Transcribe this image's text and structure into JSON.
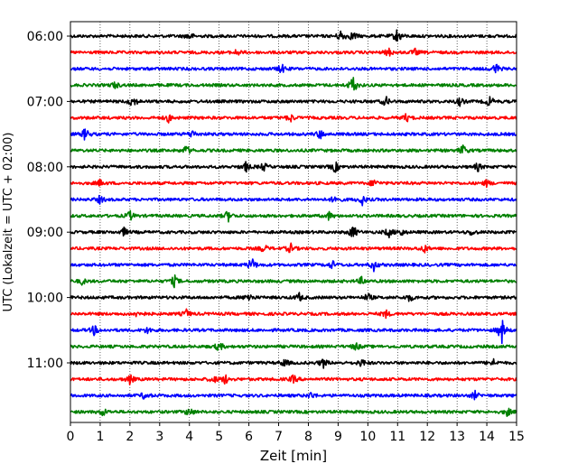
{
  "chart_data": {
    "type": "line",
    "title": "",
    "xlabel": "Zeit  [min]",
    "ylabel": "UTC (Lokalzeit = UTC + 02:00)",
    "xlim": [
      0,
      15
    ],
    "x_ticks": [
      0,
      1,
      2,
      3,
      4,
      5,
      6,
      7,
      8,
      9,
      10,
      11,
      12,
      13,
      14,
      15
    ],
    "grid": "vertical dotted",
    "y_tick_labels": [
      "06:00",
      "07:00",
      "08:00",
      "09:00",
      "10:00",
      "11:00"
    ],
    "colors": [
      "#000000",
      "#ff0000",
      "#0000ff",
      "#008000"
    ],
    "traces_start": "06:00",
    "trace_interval_min": 15,
    "traces": [
      {
        "start": "06:00",
        "color": "#000000",
        "events": [
          [
            4.0,
            0.5
          ],
          [
            9.1,
            0.8
          ],
          [
            9.5,
            0.6
          ],
          [
            11.0,
            1.0
          ]
        ]
      },
      {
        "start": "06:15",
        "color": "#ff0000",
        "events": [
          [
            5.6,
            0.4
          ],
          [
            10.7,
            0.5
          ],
          [
            11.6,
            0.4
          ]
        ]
      },
      {
        "start": "06:30",
        "color": "#0000ff",
        "events": [
          [
            7.1,
            0.6
          ],
          [
            14.3,
            0.7
          ]
        ]
      },
      {
        "start": "06:45",
        "color": "#008000",
        "events": [
          [
            1.5,
            0.4
          ],
          [
            9.5,
            1.2
          ]
        ]
      },
      {
        "start": "07:00",
        "color": "#000000",
        "events": [
          [
            2.1,
            0.8
          ],
          [
            10.6,
            0.6
          ],
          [
            13.1,
            0.5
          ],
          [
            14.1,
            0.7
          ]
        ]
      },
      {
        "start": "07:15",
        "color": "#ff0000",
        "events": [
          [
            3.3,
            0.5
          ],
          [
            7.4,
            0.5
          ],
          [
            11.3,
            0.5
          ]
        ]
      },
      {
        "start": "07:30",
        "color": "#0000ff",
        "events": [
          [
            0.5,
            0.8
          ],
          [
            4.1,
            0.5
          ],
          [
            8.4,
            0.6
          ]
        ]
      },
      {
        "start": "07:45",
        "color": "#008000",
        "events": [
          [
            3.9,
            0.6
          ],
          [
            13.2,
            0.7
          ]
        ]
      },
      {
        "start": "08:00",
        "color": "#000000",
        "events": [
          [
            5.9,
            0.6
          ],
          [
            6.5,
            0.5
          ],
          [
            8.9,
            0.7
          ],
          [
            13.7,
            0.5
          ]
        ]
      },
      {
        "start": "08:15",
        "color": "#ff0000",
        "events": [
          [
            1.0,
            0.4
          ],
          [
            10.2,
            0.5
          ],
          [
            14.0,
            0.4
          ]
        ]
      },
      {
        "start": "08:30",
        "color": "#0000ff",
        "events": [
          [
            1.0,
            0.5
          ],
          [
            8.9,
            0.5
          ],
          [
            9.8,
            0.7
          ]
        ]
      },
      {
        "start": "08:45",
        "color": "#008000",
        "events": [
          [
            2.0,
            0.6
          ],
          [
            5.3,
            0.7
          ],
          [
            8.7,
            0.5
          ]
        ]
      },
      {
        "start": "09:00",
        "color": "#000000",
        "events": [
          [
            1.8,
            0.5
          ],
          [
            9.5,
            0.9
          ],
          [
            10.7,
            0.6
          ],
          [
            11.1,
            0.5
          ],
          [
            13.5,
            0.4
          ]
        ]
      },
      {
        "start": "09:15",
        "color": "#ff0000",
        "events": [
          [
            6.5,
            0.5
          ],
          [
            7.4,
            0.6
          ],
          [
            11.9,
            0.5
          ]
        ]
      },
      {
        "start": "09:30",
        "color": "#0000ff",
        "events": [
          [
            6.1,
            0.9
          ],
          [
            8.8,
            0.5
          ],
          [
            10.2,
            0.7
          ]
        ]
      },
      {
        "start": "09:45",
        "color": "#008000",
        "events": [
          [
            0.4,
            0.4
          ],
          [
            3.5,
            0.7
          ],
          [
            9.8,
            0.5
          ]
        ]
      },
      {
        "start": "10:00",
        "color": "#000000",
        "events": [
          [
            6.0,
            0.6
          ],
          [
            7.7,
            0.5
          ],
          [
            10.0,
            0.5
          ],
          [
            11.4,
            0.5
          ]
        ]
      },
      {
        "start": "10:15",
        "color": "#ff0000",
        "events": [
          [
            2.3,
            0.6
          ],
          [
            3.9,
            0.5
          ],
          [
            10.6,
            0.5
          ]
        ]
      },
      {
        "start": "10:30",
        "color": "#0000ff",
        "events": [
          [
            0.8,
            0.6
          ],
          [
            2.6,
            0.4
          ],
          [
            14.5,
            1.6
          ]
        ]
      },
      {
        "start": "10:45",
        "color": "#008000",
        "events": [
          [
            5.0,
            0.6
          ],
          [
            9.6,
            0.5
          ]
        ]
      },
      {
        "start": "11:00",
        "color": "#000000",
        "events": [
          [
            7.2,
            0.5
          ],
          [
            8.5,
            0.6
          ],
          [
            9.8,
            0.5
          ],
          [
            14.2,
            0.5
          ]
        ]
      },
      {
        "start": "11:15",
        "color": "#ff0000",
        "events": [
          [
            2.0,
            0.6
          ],
          [
            4.8,
            0.5
          ],
          [
            5.2,
            0.6
          ],
          [
            7.5,
            0.5
          ]
        ]
      },
      {
        "start": "11:30",
        "color": "#0000ff",
        "events": [
          [
            2.5,
            0.5
          ],
          [
            8.1,
            0.4
          ],
          [
            13.6,
            0.5
          ]
        ]
      },
      {
        "start": "11:45",
        "color": "#008000",
        "events": [
          [
            1.1,
            0.5
          ],
          [
            4.0,
            0.6
          ],
          [
            14.7,
            0.5
          ]
        ]
      }
    ]
  }
}
